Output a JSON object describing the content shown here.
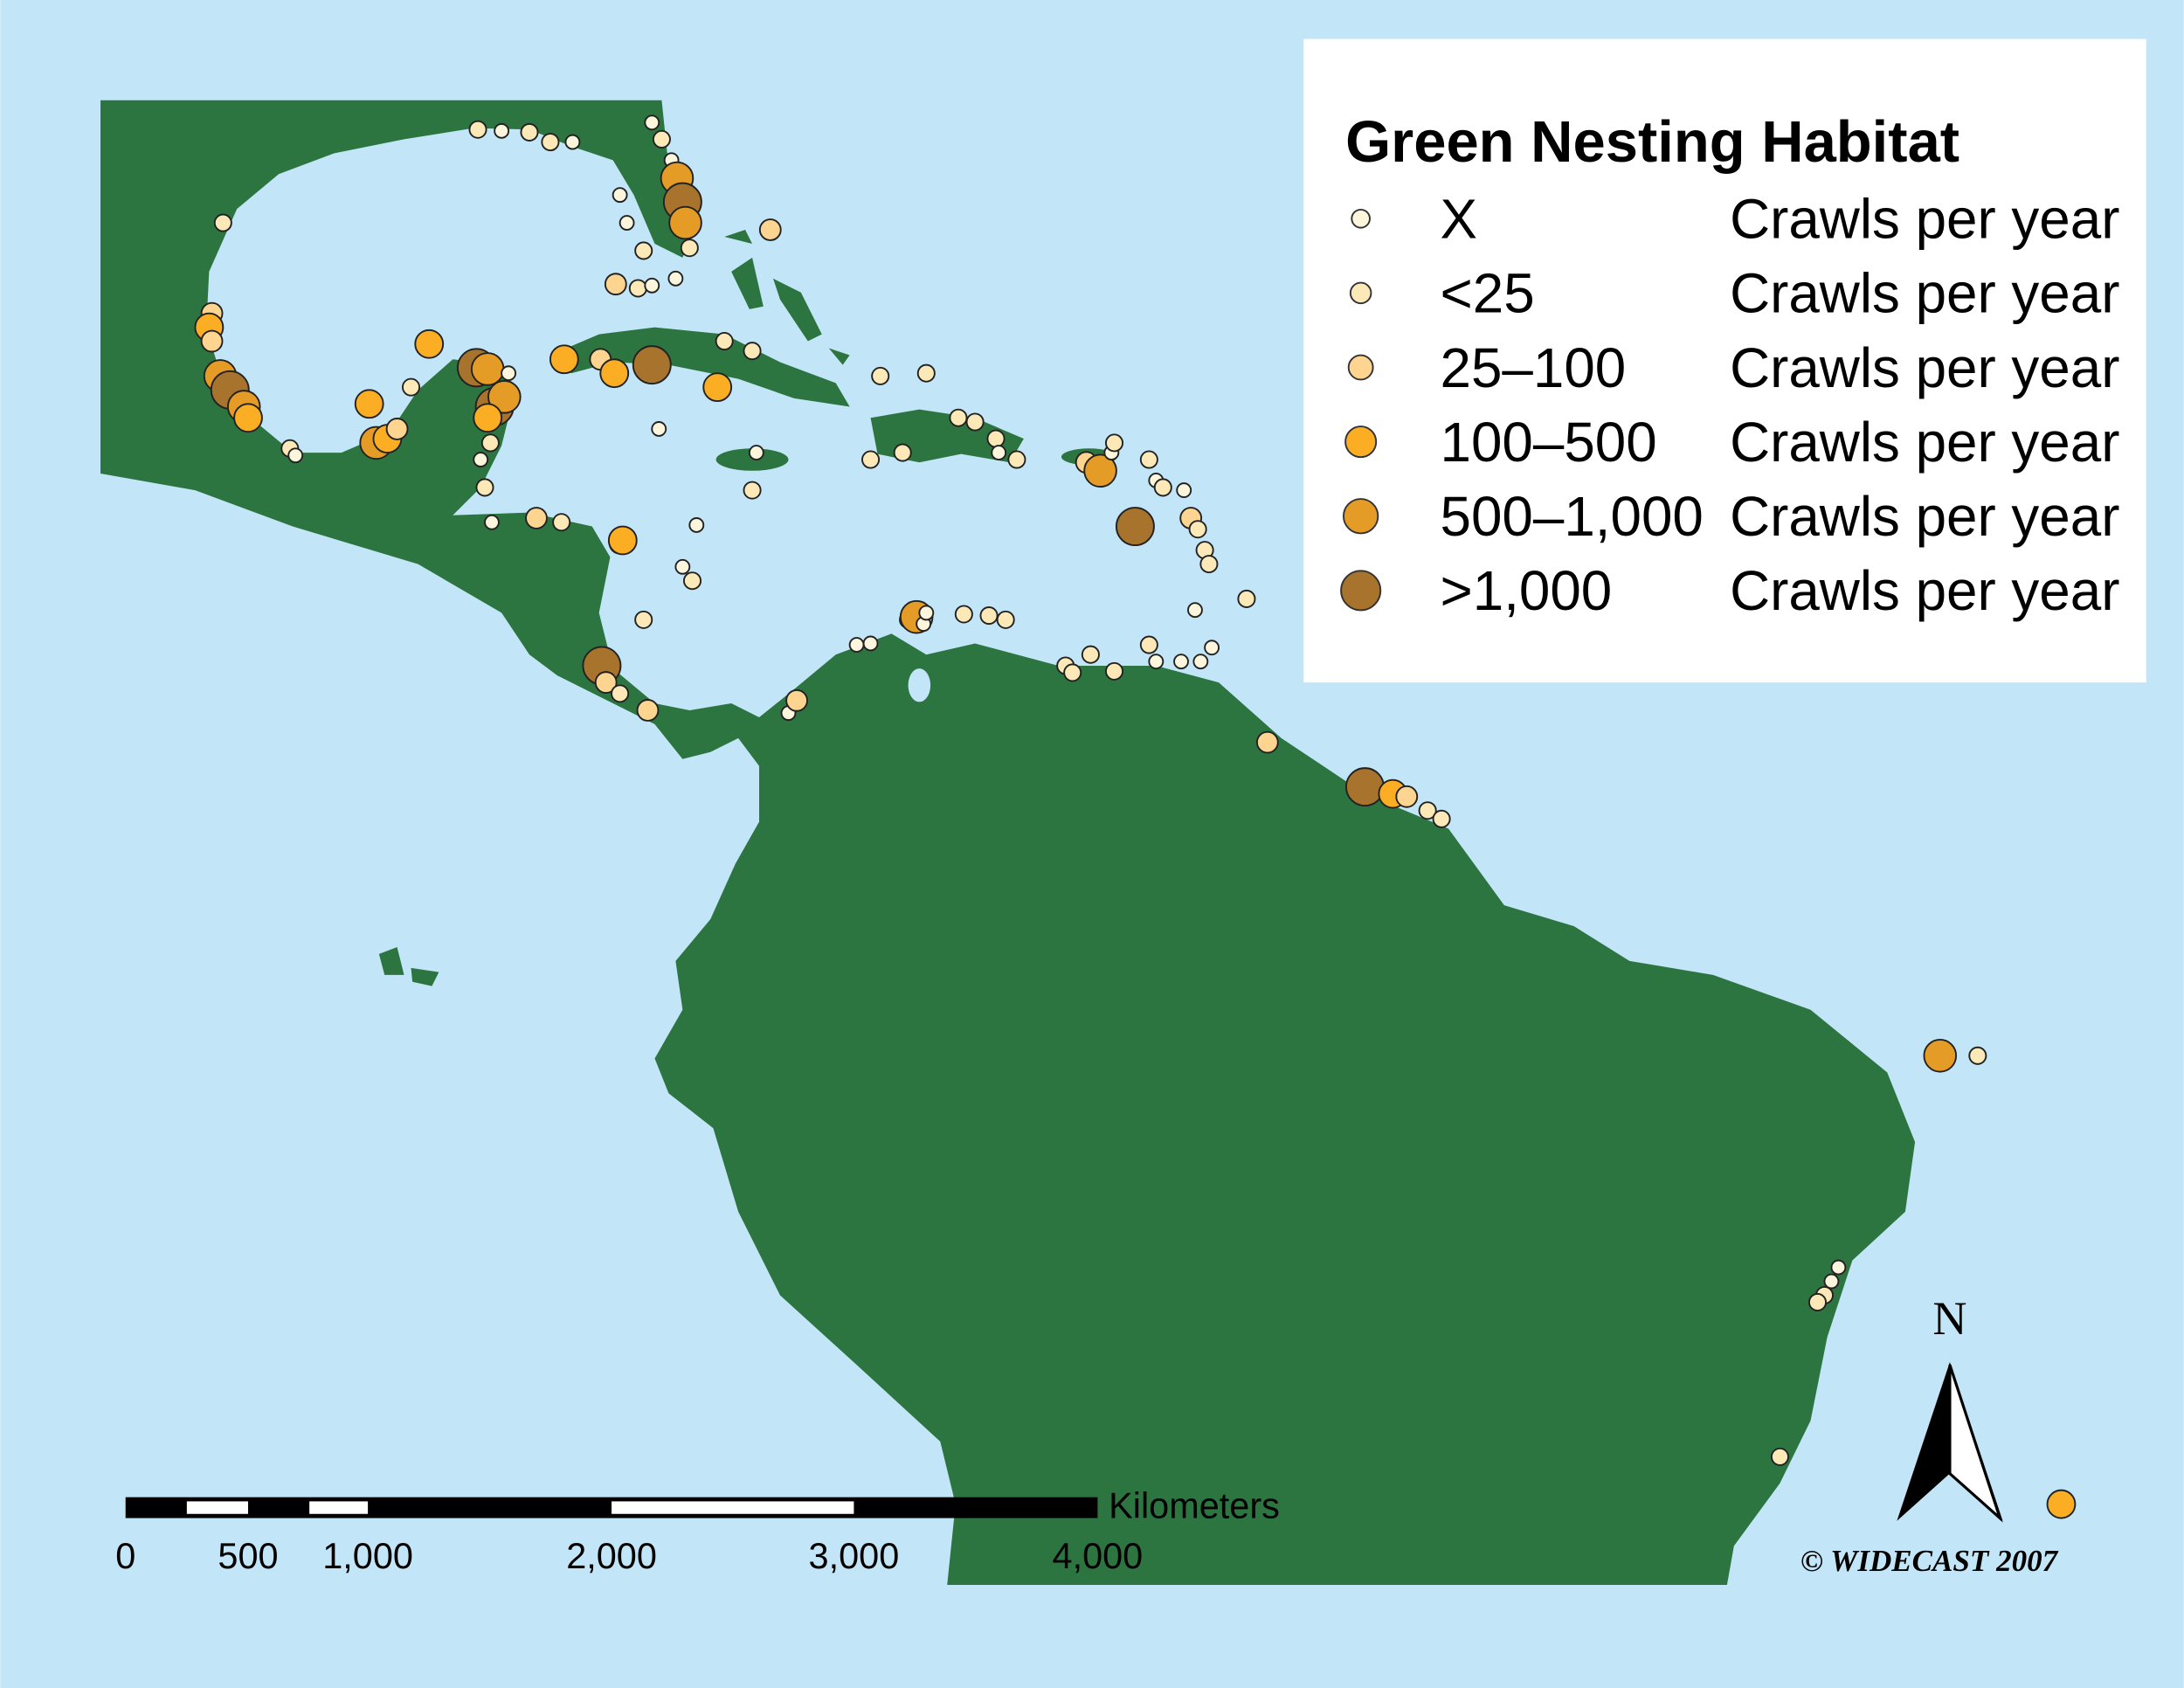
{
  "legend": {
    "title": "Green Nesting Habitat",
    "items": [
      {
        "label": "X",
        "unit": "Crawls per year",
        "color": "#fdf6dc"
      },
      {
        "label": "<25",
        "unit": "Crawls per year",
        "color": "#fde9b8"
      },
      {
        "label": "25–100",
        "unit": "Crawls per year",
        "color": "#fdd591"
      },
      {
        "label": "100–500",
        "unit": "Crawls per year",
        "color": "#fbad24"
      },
      {
        "label": "500–1,000",
        "unit": "Crawls per year",
        "color": "#e59c26"
      },
      {
        "label": ">1,000",
        "unit": "Crawls per year",
        "color": "#a8732c"
      }
    ]
  },
  "scale_bar": {
    "unit": "Kilometers",
    "labels": [
      "0",
      "500",
      "1,000",
      "2,000",
      "3,000",
      "4,000"
    ]
  },
  "north_arrow": "N",
  "credit": "© WIDECAST 2007"
}
